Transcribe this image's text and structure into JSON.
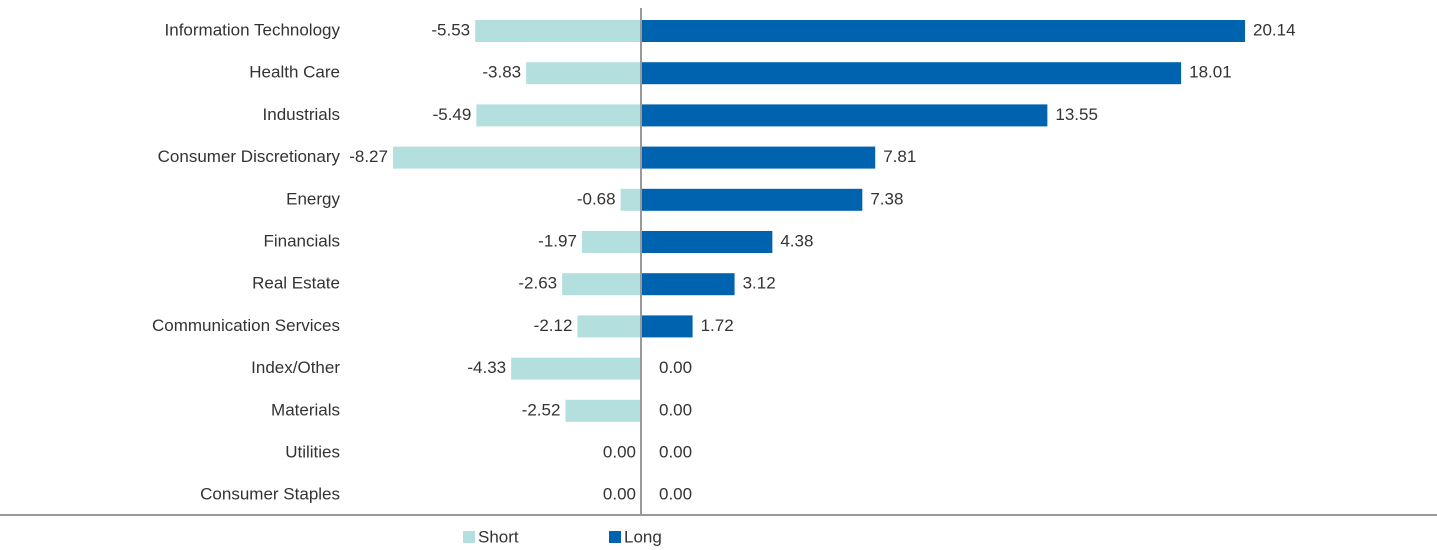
{
  "chart_data": {
    "type": "diverging-bar",
    "categories": [
      "Information Technology",
      "Health Care",
      "Industrials",
      "Consumer Discretionary",
      "Energy",
      "Financials",
      "Real Estate",
      "Communication Services",
      "Index/Other",
      "Materials",
      "Utilities",
      "Consumer Staples"
    ],
    "series": [
      {
        "name": "Short",
        "color": "#b3e0df",
        "values": [
          -5.53,
          -3.83,
          -5.49,
          -8.27,
          -0.68,
          -1.97,
          -2.63,
          -2.12,
          -4.33,
          -2.52,
          0,
          0
        ],
        "value_labels": [
          "-5.53",
          "-3.83",
          "-5.49",
          "-8.27",
          "-0.68",
          "-1.97",
          "-2.63",
          "-2.12",
          "-4.33",
          "-2.52",
          "0.00",
          "0.00"
        ]
      },
      {
        "name": "Long",
        "color": "#0063af",
        "values": [
          20.14,
          18.01,
          13.55,
          7.81,
          7.38,
          4.38,
          3.12,
          1.72,
          0,
          0,
          0,
          0
        ],
        "value_labels": [
          "20.14",
          "18.01",
          "13.55",
          "7.81",
          "7.38",
          "4.38",
          "3.12",
          "1.72",
          "0.00",
          "0.00",
          "0.00",
          "0.00"
        ]
      }
    ],
    "legend": "bottom"
  }
}
